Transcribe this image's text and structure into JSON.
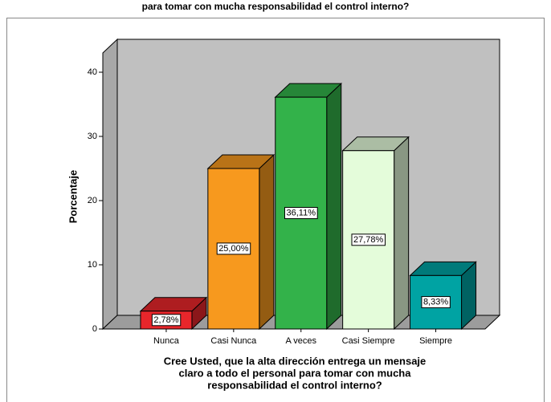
{
  "chart_data": {
    "type": "bar3d",
    "title": "para tomar con mucha responsabilidad el control interno?",
    "y_label": "Porcentaje",
    "x_label": [
      "Cree Usted, que la alta dirección entrega un mensaje",
      "claro a todo el personal para tomar con mucha",
      "responsabilidad el control interno?"
    ],
    "categories": [
      "Nunca",
      "Casi Nunca",
      "A veces",
      "Casi Siempre",
      "Siempre"
    ],
    "values": [
      2.78,
      25.0,
      36.11,
      27.78,
      8.33
    ],
    "value_labels": [
      "2,78%",
      "25,00%",
      "36,11%",
      "27,78%",
      "8,33%"
    ],
    "colors": [
      "#e8262b",
      "#f7991e",
      "#33b24a",
      "#e4fcda",
      "#00a3a3"
    ],
    "ylim": [
      0,
      43
    ],
    "yticks": [
      0,
      10,
      20,
      30,
      40
    ],
    "grid": false
  }
}
